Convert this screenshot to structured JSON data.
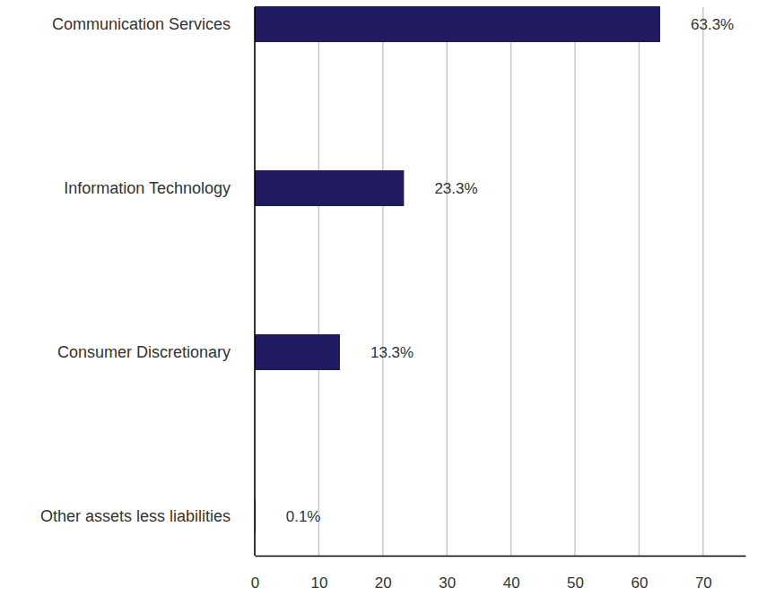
{
  "chart_data": {
    "type": "bar",
    "orientation": "horizontal",
    "categories": [
      "Communication Services",
      "Information Technology",
      "Consumer Discretionary",
      "Other assets less liabilities"
    ],
    "values": [
      63.3,
      23.3,
      13.3,
      0.1
    ],
    "value_labels": [
      "63.3%",
      "23.3%",
      "13.3%",
      "0.1%"
    ],
    "color": "#201a60",
    "xlim": [
      0,
      76.6
    ],
    "xticks": [
      0,
      10,
      20,
      30,
      40,
      50,
      60,
      70
    ],
    "grid": true,
    "data_labels": true
  }
}
